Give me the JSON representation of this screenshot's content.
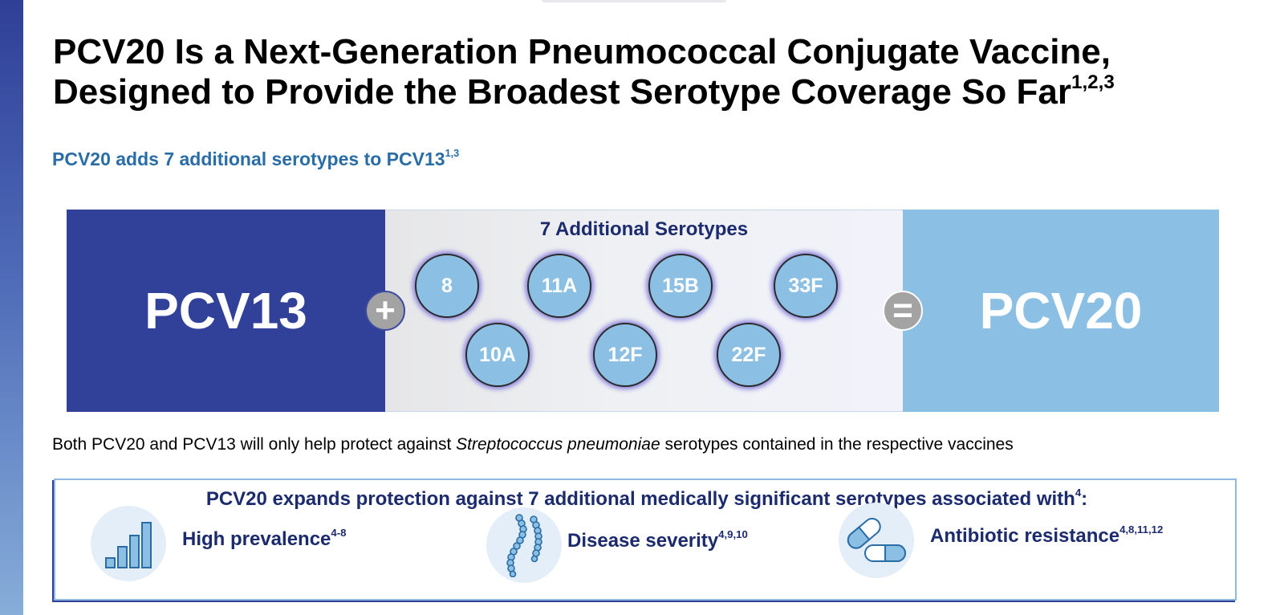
{
  "slide": {
    "title_line1": "PCV20 Is a Next-Generation Pneumococcal Conjugate Vaccine,",
    "title_line2": "Designed to Provide the Broadest Serotype Coverage So Far",
    "title_sup": "1,2,3",
    "subtitle": "PCV20 adds 7 additional serotypes to PCV13",
    "subtitle_sup": "1,3"
  },
  "equation": {
    "left_label": "PCV13",
    "plus_symbol": "+",
    "middle_title": "7 Additional Serotypes",
    "serotypes_row1": [
      "8",
      "11A",
      "15B",
      "33F"
    ],
    "serotypes_row2": [
      "10A",
      "12F",
      "22F"
    ],
    "equals_symbol": "=",
    "right_label": "PCV20"
  },
  "disclaimer": {
    "before": "Both PCV20 and PCV13 will only help protect against ",
    "italic": "Streptococcus pneumoniae",
    "after": " serotypes contained in the respective vaccines"
  },
  "benefits": {
    "heading": "PCV20 expands protection against 7 additional medically significant serotypes associated with",
    "heading_sup": "4",
    "heading_suffix": ":",
    "items": [
      {
        "icon": "bar-chart-icon",
        "label": "High prevalence",
        "sup": "4-8"
      },
      {
        "icon": "bacteria-chain-icon",
        "label": "Disease severity",
        "sup": "4,9,10"
      },
      {
        "icon": "pills-icon",
        "label": "Antibiotic resistance",
        "sup": "4,8,11,12"
      }
    ]
  },
  "colors": {
    "dark_blue": "#314099",
    "light_blue": "#8bc0e4",
    "subtitle_blue": "#2a6da6",
    "navy_text": "#1c2a6e",
    "operator_gray": "#a3a3a3"
  }
}
